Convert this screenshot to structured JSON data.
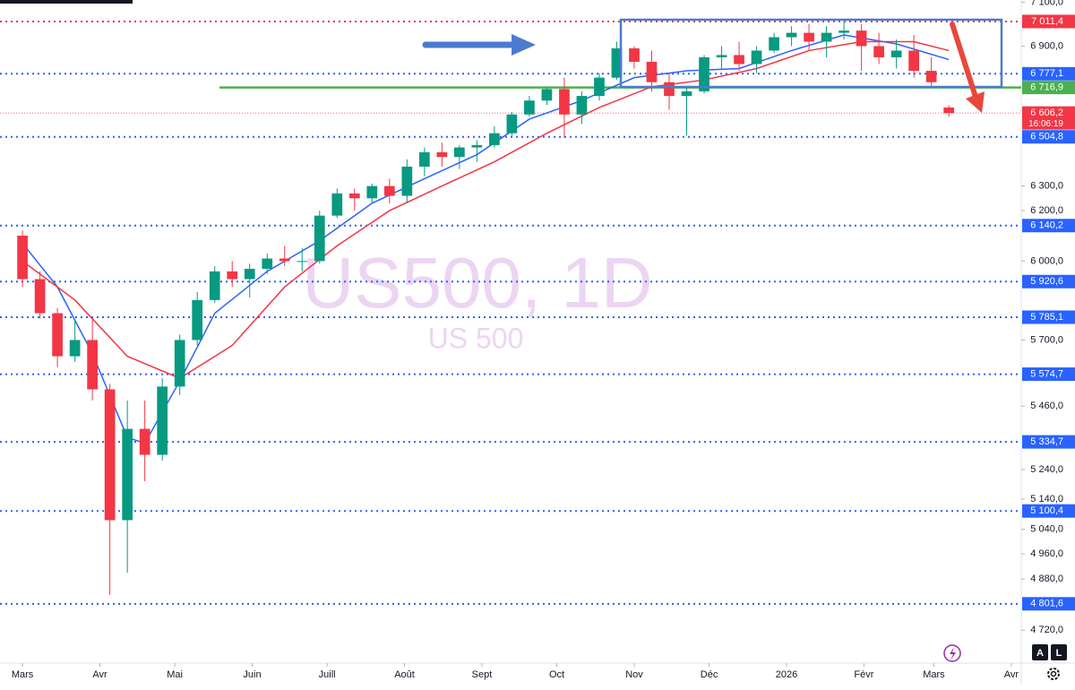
{
  "chart_data": {
    "type": "candlestick",
    "title": "US500, 1D",
    "subtitle": "US 500",
    "log_scale": true,
    "grid": false,
    "up_color": "#089981",
    "down_color": "#f23645",
    "xlim": [
      -9,
      400
    ],
    "ylim": [
      4620,
      7110
    ],
    "xticks": [
      {
        "value": 0,
        "label": "Mars"
      },
      {
        "value": 31,
        "label": "Avr"
      },
      {
        "value": 61,
        "label": "Mai"
      },
      {
        "value": 92,
        "label": "Juin"
      },
      {
        "value": 122,
        "label": "Juill"
      },
      {
        "value": 153,
        "label": "Août"
      },
      {
        "value": 184,
        "label": "Sept"
      },
      {
        "value": 214,
        "label": "Oct"
      },
      {
        "value": 245,
        "label": "Nov"
      },
      {
        "value": 275,
        "label": "Déc"
      },
      {
        "value": 306,
        "label": "2026"
      },
      {
        "value": 337,
        "label": "Févr"
      },
      {
        "value": 365,
        "label": "Mars"
      },
      {
        "value": 396,
        "label": "Avr"
      }
    ],
    "yticks": [
      {
        "value": 7100,
        "label": "7 100,0"
      },
      {
        "value": 6900,
        "label": "6 900,0"
      },
      {
        "value": 6300,
        "label": "6 300,0"
      },
      {
        "value": 6200,
        "label": "6 200,0"
      },
      {
        "value": 6000,
        "label": "6 000,0"
      },
      {
        "value": 5700,
        "label": "5 700,0"
      },
      {
        "value": 5460,
        "label": "5 460,0"
      },
      {
        "value": 5240,
        "label": "5 240,0"
      },
      {
        "value": 5140,
        "label": "5 140,0"
      },
      {
        "value": 5040,
        "label": "5 040,0"
      },
      {
        "value": 4960,
        "label": "4 960,0"
      },
      {
        "value": 4880,
        "label": "4 880,0"
      },
      {
        "value": 4720,
        "label": "4 720,0"
      }
    ],
    "x": [
      0,
      7,
      14,
      21,
      28,
      35,
      42,
      49,
      56,
      63,
      70,
      77,
      84,
      91,
      98,
      105,
      112,
      119,
      126,
      133,
      140,
      147,
      154,
      161,
      168,
      175,
      182,
      189,
      196,
      203,
      210,
      217,
      224,
      231,
      238,
      245,
      252,
      259,
      266,
      273,
      280,
      287,
      294,
      301,
      308,
      315,
      322,
      329,
      336,
      343,
      350,
      357,
      364,
      371
    ],
    "open": [
      6100,
      5930,
      5800,
      5640,
      5700,
      5520,
      5070,
      5380,
      5290,
      5530,
      5700,
      5850,
      5960,
      5930,
      5970,
      6010,
      6000,
      6000,
      6180,
      6270,
      6250,
      6300,
      6260,
      6380,
      6440,
      6420,
      6460,
      6470,
      6520,
      6600,
      6660,
      6710,
      6600,
      6680,
      6760,
      6890,
      6830,
      6740,
      6680,
      6700,
      6850,
      6860,
      6820,
      6880,
      6940,
      6960,
      6920,
      6960,
      6970,
      6900,
      6850,
      6880,
      6790,
      6630
    ],
    "high": [
      6120,
      5960,
      5820,
      5780,
      5780,
      5540,
      5480,
      5480,
      5560,
      5720,
      5880,
      5980,
      6000,
      5990,
      6030,
      6060,
      6050,
      6200,
      6290,
      6290,
      6310,
      6330,
      6410,
      6460,
      6480,
      6470,
      6490,
      6550,
      6610,
      6680,
      6720,
      6760,
      6700,
      6780,
      6920,
      6900,
      6880,
      6780,
      6720,
      6860,
      6900,
      6920,
      6900,
      6960,
      6990,
      7000,
      6990,
      7011,
      7000,
      6960,
      6930,
      6950,
      6850,
      6640
    ],
    "low": [
      5900,
      5780,
      5600,
      5620,
      5480,
      4830,
      4900,
      5200,
      5270,
      5500,
      5680,
      5840,
      5900,
      5860,
      5950,
      5980,
      5960,
      5990,
      6170,
      6200,
      6230,
      6230,
      6230,
      6340,
      6380,
      6370,
      6400,
      6460,
      6510,
      6590,
      6640,
      6500,
      6560,
      6660,
      6750,
      6800,
      6700,
      6620,
      6510,
      6690,
      6800,
      6790,
      6780,
      6870,
      6900,
      6880,
      6850,
      6930,
      6790,
      6820,
      6800,
      6760,
      6720,
      6590
    ],
    "close": [
      5930,
      5800,
      5640,
      5700,
      5520,
      5070,
      5380,
      5290,
      5530,
      5700,
      5850,
      5960,
      5930,
      5970,
      6010,
      6000,
      6000,
      6180,
      6270,
      6250,
      6300,
      6260,
      6380,
      6440,
      6420,
      6460,
      6470,
      6520,
      6600,
      6660,
      6710,
      6600,
      6680,
      6760,
      6890,
      6830,
      6740,
      6680,
      6700,
      6850,
      6860,
      6820,
      6880,
      6940,
      6960,
      6920,
      6960,
      6970,
      6900,
      6850,
      6880,
      6790,
      6740,
      6606
    ],
    "lines": [
      {
        "color": "#2962ff",
        "x": [
          0,
          14,
          28,
          42,
          49,
          63,
          77,
          98,
          119,
          140,
          161,
          182,
          203,
          224,
          245,
          266,
          287,
          308,
          329,
          350,
          371
        ],
        "values": [
          6070,
          5900,
          5650,
          5350,
          5330,
          5550,
          5800,
          5960,
          6080,
          6230,
          6330,
          6430,
          6580,
          6660,
          6760,
          6790,
          6800,
          6880,
          6950,
          6910,
          6840
        ]
      },
      {
        "color": "#f23645",
        "x": [
          0,
          21,
          42,
          63,
          84,
          105,
          126,
          147,
          168,
          189,
          210,
          231,
          252,
          273,
          294,
          315,
          336,
          357,
          371
        ],
        "values": [
          6000,
          5850,
          5640,
          5560,
          5680,
          5900,
          6060,
          6200,
          6300,
          6400,
          6520,
          6630,
          6720,
          6750,
          6800,
          6880,
          6920,
          6920,
          6880
        ]
      }
    ],
    "levels": [
      {
        "value": 7011.4,
        "label": "7 011,4",
        "color": "#f23645"
      },
      {
        "value": 6777.1,
        "label": "6 777,1",
        "color": "#2962ff"
      },
      {
        "value": 6716.9,
        "label": "6 716,9",
        "color": "#4caf50"
      },
      {
        "value": 6606.2,
        "label": "6 606,2",
        "time": "16:06:19",
        "color": "#f23645"
      },
      {
        "value": 6504.8,
        "label": "6 504,8",
        "color": "#2962ff"
      },
      {
        "value": 6140.2,
        "label": "6 140,2",
        "color": "#2962ff"
      },
      {
        "value": 5920.6,
        "label": "5 920,6",
        "color": "#2962ff"
      },
      {
        "value": 5785.1,
        "label": "5 785,1",
        "color": "#2962ff"
      },
      {
        "value": 5574.7,
        "label": "5 574,7",
        "color": "#2962ff"
      },
      {
        "value": 5334.7,
        "label": "5 334,7",
        "color": "#2962ff"
      },
      {
        "value": 5100.4,
        "label": "5 100,4",
        "color": "#2962ff"
      },
      {
        "value": 4801.6,
        "label": "4 801,6",
        "color": "#2962ff"
      }
    ]
  },
  "ui": {
    "buttons": [
      "A",
      "L"
    ]
  }
}
